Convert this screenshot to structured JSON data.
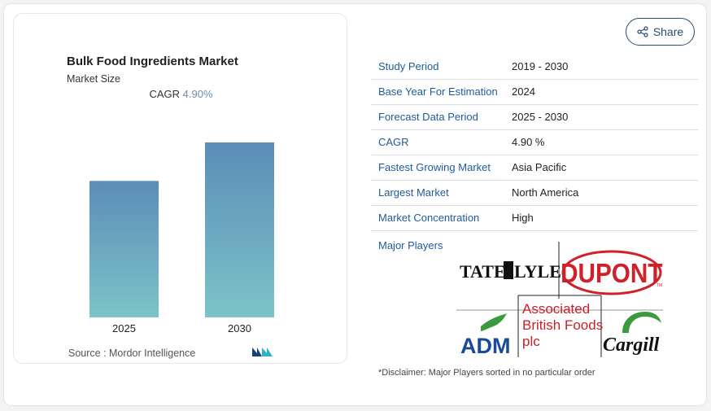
{
  "header": {
    "title": "Bulk Food Ingredients Market",
    "subtitle": "Market Size",
    "cagr_label": "CAGR",
    "cagr_value": "4.90%"
  },
  "chart_data": {
    "type": "bar",
    "categories": [
      "2025",
      "2030"
    ],
    "values": [
      0.78,
      1.0
    ],
    "colors": [
      "#5b8db8",
      "#7dc3c8"
    ]
  },
  "source": {
    "text": "Source : Mordor Intelligence",
    "logo_text": "MN"
  },
  "share": {
    "label": "Share",
    "icon": "share-icon"
  },
  "stats": [
    {
      "key": "Study Period",
      "value": "2019 - 2030"
    },
    {
      "key": "Base Year For Estimation",
      "value": "2024"
    },
    {
      "key": "Forecast Data Period",
      "value": "2025 - 2030"
    },
    {
      "key": "CAGR",
      "value": "4.90 %"
    },
    {
      "key": "Fastest Growing Market",
      "value": "Asia Pacific"
    },
    {
      "key": "Largest Market",
      "value": "North America"
    },
    {
      "key": "Market Concentration",
      "value": "High"
    }
  ],
  "players": {
    "label": "Major Players",
    "logos": {
      "tate_lyle": "TATE",
      "tate_lyle_b": "LYLE",
      "dupont": "DUPONT",
      "dupont_tm": "TM",
      "abf_1": "Associated",
      "abf_2": "British Foods",
      "abf_3": "plc",
      "adm": "ADM",
      "cargill": "Cargill"
    }
  },
  "disclaimer": "*Disclaimer: Major Players sorted in no particular order"
}
